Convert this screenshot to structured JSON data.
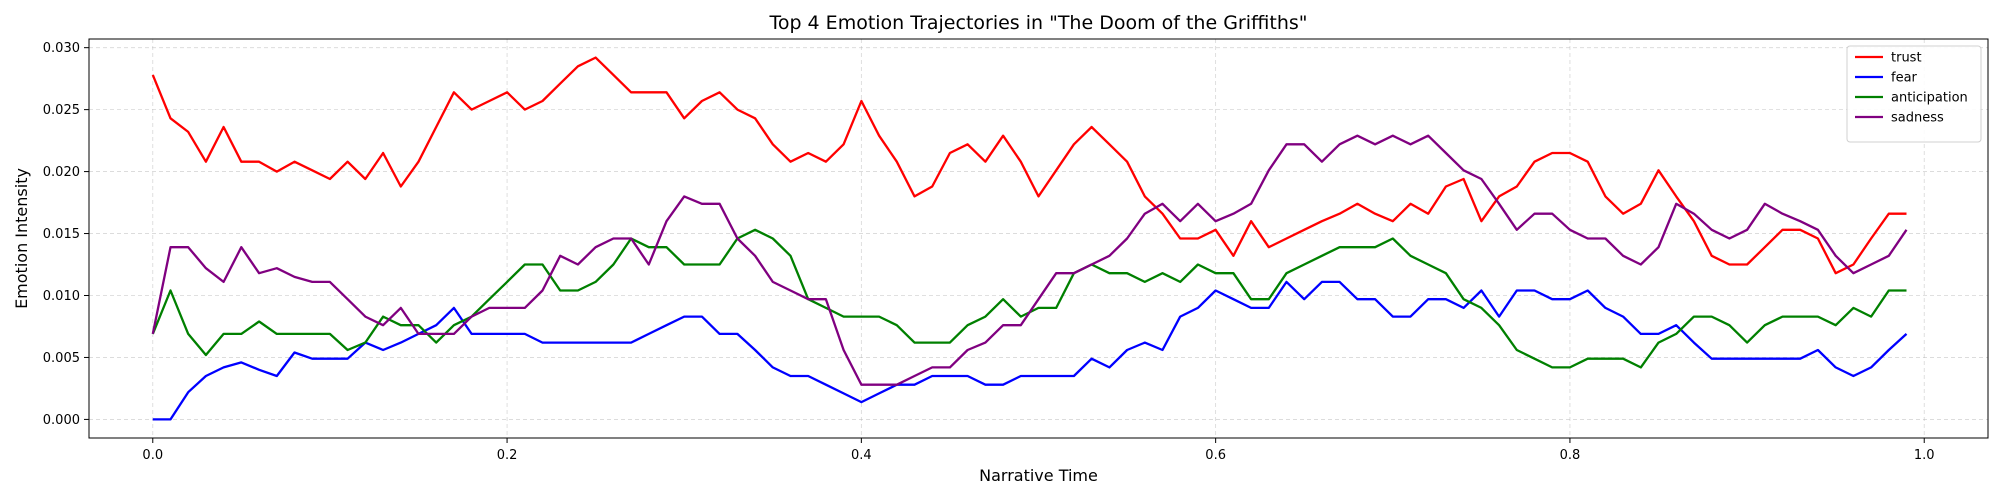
{
  "chart_data": {
    "type": "line",
    "title": "Top 4 Emotion Trajectories in \"The Doom of the Griffiths\"",
    "xlabel": "Narrative Time",
    "ylabel": "Emotion Intensity",
    "xlim": [
      -0.036,
      1.036
    ],
    "ylim": [
      -0.0015,
      0.0307
    ],
    "xticks": [
      0.0,
      0.2,
      0.4,
      0.6,
      0.8,
      1.0
    ],
    "xtick_labels": [
      "0.0",
      "0.2",
      "0.4",
      "0.6",
      "0.8",
      "1.0"
    ],
    "yticks": [
      0.0,
      0.005,
      0.01,
      0.015,
      0.02,
      0.025,
      0.03
    ],
    "ytick_labels": [
      "0.000",
      "0.005",
      "0.010",
      "0.015",
      "0.020",
      "0.025",
      "0.030"
    ],
    "grid": true,
    "legend_position": "top-right",
    "x": [
      0.0,
      0.01,
      0.02,
      0.03,
      0.04,
      0.05,
      0.06,
      0.07,
      0.08,
      0.09,
      0.1,
      0.11,
      0.12,
      0.13,
      0.14,
      0.15,
      0.16,
      0.17,
      0.18,
      0.19,
      0.2,
      0.21,
      0.22,
      0.23,
      0.24,
      0.25,
      0.26,
      0.27,
      0.28,
      0.29,
      0.3,
      0.31,
      0.32,
      0.33,
      0.34,
      0.35,
      0.36,
      0.37,
      0.38,
      0.39,
      0.4,
      0.41,
      0.42,
      0.43,
      0.44,
      0.45,
      0.46,
      0.47,
      0.48,
      0.49,
      0.5,
      0.51,
      0.52,
      0.53,
      0.54,
      0.55,
      0.56,
      0.57,
      0.58,
      0.59,
      0.6,
      0.61,
      0.62,
      0.63,
      0.64,
      0.65,
      0.66,
      0.67,
      0.68,
      0.69,
      0.7,
      0.71,
      0.72,
      0.73,
      0.74,
      0.75,
      0.76,
      0.77,
      0.78,
      0.79,
      0.8,
      0.81,
      0.82,
      0.83,
      0.84,
      0.85,
      0.86,
      0.87,
      0.88,
      0.89,
      0.9,
      0.91,
      0.92,
      0.93,
      0.94,
      0.95,
      0.96,
      0.97,
      0.98,
      0.99
    ],
    "series": [
      {
        "name": "trust",
        "color": "#ff0000",
        "values": [
          0.0278,
          0.0243,
          0.0232,
          0.0208,
          0.0236,
          0.0208,
          0.0208,
          0.02,
          0.0208,
          0.0201,
          0.0194,
          0.0208,
          0.0194,
          0.0215,
          0.0188,
          0.0208,
          0.0236,
          0.0264,
          0.025,
          0.0257,
          0.0264,
          0.025,
          0.0257,
          0.0271,
          0.0285,
          0.0292,
          0.0278,
          0.0264,
          0.0264,
          0.0264,
          0.0243,
          0.0257,
          0.0264,
          0.025,
          0.0243,
          0.0222,
          0.0208,
          0.0215,
          0.0208,
          0.0222,
          0.0257,
          0.0229,
          0.0208,
          0.018,
          0.0188,
          0.0215,
          0.0222,
          0.0208,
          0.0229,
          0.0208,
          0.018,
          0.0201,
          0.0222,
          0.0236,
          0.0222,
          0.0208,
          0.018,
          0.0166,
          0.0146,
          0.0146,
          0.0153,
          0.0132,
          0.016,
          0.0139,
          0.0146,
          0.0153,
          0.016,
          0.0166,
          0.0174,
          0.0166,
          0.016,
          0.0174,
          0.0166,
          0.0188,
          0.0194,
          0.016,
          0.018,
          0.0188,
          0.0208,
          0.0215,
          0.0215,
          0.0208,
          0.018,
          0.0166,
          0.0174,
          0.0201,
          0.018,
          0.016,
          0.0132,
          0.0125,
          0.0125,
          0.0139,
          0.0153,
          0.0153,
          0.0146,
          0.0118,
          0.0125,
          0.0146,
          0.0166,
          0.0166
        ]
      },
      {
        "name": "fear",
        "color": "#0000ff",
        "values": [
          0.0,
          0.0,
          0.0022,
          0.0035,
          0.0042,
          0.0046,
          0.004,
          0.0035,
          0.0054,
          0.0049,
          0.0049,
          0.0049,
          0.0062,
          0.0056,
          0.0062,
          0.0069,
          0.0076,
          0.009,
          0.0069,
          0.0069,
          0.0069,
          0.0069,
          0.0062,
          0.0062,
          0.0062,
          0.0062,
          0.0062,
          0.0062,
          0.0069,
          0.0076,
          0.0083,
          0.0083,
          0.0069,
          0.0069,
          0.0056,
          0.0042,
          0.0035,
          0.0035,
          0.0028,
          0.0021,
          0.0014,
          0.0021,
          0.0028,
          0.0028,
          0.0035,
          0.0035,
          0.0035,
          0.0028,
          0.0028,
          0.0035,
          0.0035,
          0.0035,
          0.0035,
          0.0049,
          0.0042,
          0.0056,
          0.0062,
          0.0056,
          0.0083,
          0.009,
          0.0104,
          0.0097,
          0.009,
          0.009,
          0.0111,
          0.0097,
          0.0111,
          0.0111,
          0.0097,
          0.0097,
          0.0083,
          0.0083,
          0.0097,
          0.0097,
          0.009,
          0.0104,
          0.0083,
          0.0104,
          0.0104,
          0.0097,
          0.0097,
          0.0104,
          0.009,
          0.0083,
          0.0069,
          0.0069,
          0.0076,
          0.0062,
          0.0049,
          0.0049,
          0.0049,
          0.0049,
          0.0049,
          0.0049,
          0.0056,
          0.0042,
          0.0035,
          0.0042,
          0.0056,
          0.0069
        ]
      },
      {
        "name": "anticipation",
        "color": "#008000",
        "values": [
          0.0069,
          0.0104,
          0.0069,
          0.0052,
          0.0069,
          0.0069,
          0.0079,
          0.0069,
          0.0069,
          0.0069,
          0.0069,
          0.0056,
          0.0062,
          0.0083,
          0.0076,
          0.0076,
          0.0062,
          0.0076,
          0.0083,
          0.0097,
          0.0111,
          0.0125,
          0.0125,
          0.0104,
          0.0104,
          0.0111,
          0.0125,
          0.0146,
          0.0139,
          0.0139,
          0.0125,
          0.0125,
          0.0125,
          0.0146,
          0.0153,
          0.0146,
          0.0132,
          0.0097,
          0.009,
          0.0083,
          0.0083,
          0.0083,
          0.0076,
          0.0062,
          0.0062,
          0.0062,
          0.0076,
          0.0083,
          0.0097,
          0.0083,
          0.009,
          0.009,
          0.0118,
          0.0125,
          0.0118,
          0.0118,
          0.0111,
          0.0118,
          0.0111,
          0.0125,
          0.0118,
          0.0118,
          0.0097,
          0.0097,
          0.0118,
          0.0125,
          0.0132,
          0.0139,
          0.0139,
          0.0139,
          0.0146,
          0.0132,
          0.0125,
          0.0118,
          0.0097,
          0.009,
          0.0076,
          0.0056,
          0.0049,
          0.0042,
          0.0042,
          0.0049,
          0.0049,
          0.0049,
          0.0042,
          0.0062,
          0.0069,
          0.0083,
          0.0083,
          0.0076,
          0.0062,
          0.0076,
          0.0083,
          0.0083,
          0.0083,
          0.0076,
          0.009,
          0.0083,
          0.0104,
          0.0104
        ]
      },
      {
        "name": "sadness",
        "color": "#800080",
        "values": [
          0.0069,
          0.0139,
          0.0139,
          0.0122,
          0.0111,
          0.0139,
          0.0118,
          0.0122,
          0.0115,
          0.0111,
          0.0111,
          0.0097,
          0.0083,
          0.0076,
          0.009,
          0.0069,
          0.0069,
          0.0069,
          0.0083,
          0.009,
          0.009,
          0.009,
          0.0104,
          0.0132,
          0.0125,
          0.0139,
          0.0146,
          0.0146,
          0.0125,
          0.016,
          0.018,
          0.0174,
          0.0174,
          0.0146,
          0.0132,
          0.0111,
          0.0104,
          0.0097,
          0.0097,
          0.0056,
          0.0028,
          0.0028,
          0.0028,
          0.0035,
          0.0042,
          0.0042,
          0.0056,
          0.0062,
          0.0076,
          0.0076,
          0.0097,
          0.0118,
          0.0118,
          0.0125,
          0.0132,
          0.0146,
          0.0166,
          0.0174,
          0.016,
          0.0174,
          0.016,
          0.0166,
          0.0174,
          0.0201,
          0.0222,
          0.0222,
          0.0208,
          0.0222,
          0.0229,
          0.0222,
          0.0229,
          0.0222,
          0.0229,
          0.0215,
          0.0201,
          0.0194,
          0.0174,
          0.0153,
          0.0166,
          0.0166,
          0.0153,
          0.0146,
          0.0146,
          0.0132,
          0.0125,
          0.0139,
          0.0174,
          0.0166,
          0.0153,
          0.0146,
          0.0153,
          0.0174,
          0.0166,
          0.016,
          0.0153,
          0.0132,
          0.0118,
          0.0125,
          0.0132,
          0.0153
        ]
      }
    ]
  }
}
